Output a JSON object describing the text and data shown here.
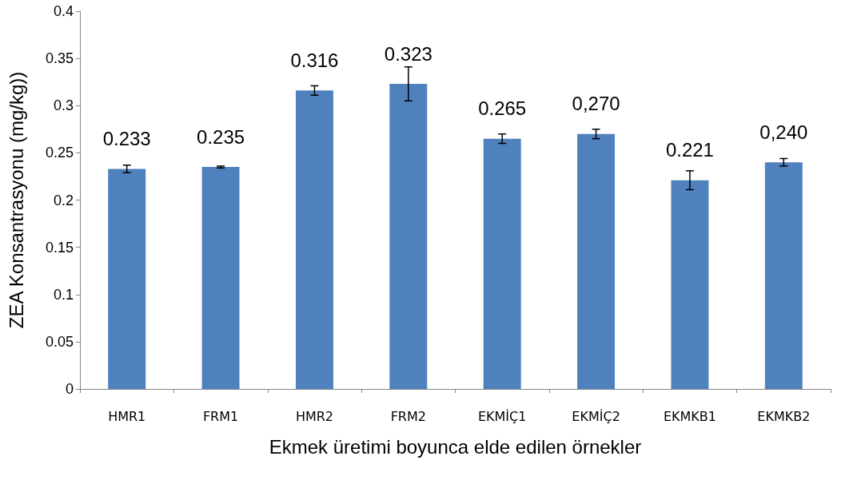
{
  "chart_data": {
    "type": "bar",
    "xlabel": "Ekmek üretimi boyunca elde edilen örnekler",
    "ylabel": "ZEA Konsantrasyonu (mg/kg))",
    "categories": [
      "HMR1",
      "FRM1",
      "HMR2",
      "FRM2",
      "EKMİÇ1",
      "EKMİÇ2",
      "EKMKB1",
      "EKMKB2"
    ],
    "values": [
      0.233,
      0.235,
      0.316,
      0.323,
      0.265,
      0.27,
      0.221,
      0.24
    ],
    "value_labels": [
      "0.233",
      "0.235",
      "0.316",
      "0.323",
      "0.265",
      "0,270",
      "0.221",
      "0,240"
    ],
    "errors": [
      0.004,
      0.001,
      0.005,
      0.018,
      0.005,
      0.005,
      0.01,
      0.004
    ],
    "color": "#4f81bd",
    "ylim": [
      0,
      0.4
    ],
    "yticks": [
      0,
      0.05,
      0.1,
      0.15,
      0.2,
      0.25,
      0.3,
      0.35,
      0.4
    ],
    "grid": false
  }
}
